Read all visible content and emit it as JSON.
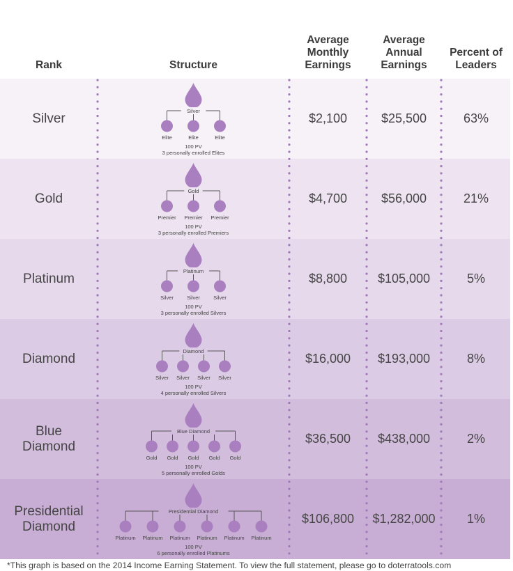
{
  "headers": {
    "rank": "Rank",
    "structure": "Structure",
    "monthly": "Average\nMonthly\nEarnings",
    "annual": "Average\nAnnual\nEarnings",
    "percent": "Percent of\nLeaders"
  },
  "colors": {
    "drop": "#a97fbf",
    "line": "#555555",
    "dots": "#a07ab8",
    "row_bg": [
      "#f7f2f8",
      "#eee4f1",
      "#e6d9ec",
      "#dccbe4",
      "#d3bddd",
      "#c8aed4"
    ]
  },
  "rows": [
    {
      "rank": "Silver",
      "center_label": "Silver",
      "child_label": "Elite",
      "child_count": 3,
      "pv": "100 PV",
      "requirement": "3 personally enrolled Elites",
      "monthly": "$2,100",
      "annual": "$25,500",
      "percent": "63%"
    },
    {
      "rank": "Gold",
      "center_label": "Gold",
      "child_label": "Premier",
      "child_count": 3,
      "pv": "100 PV",
      "requirement": "3 personally enrolled Premiers",
      "monthly": "$4,700",
      "annual": "$56,000",
      "percent": "21%"
    },
    {
      "rank": "Platinum",
      "center_label": "Platinum",
      "child_label": "Silver",
      "child_count": 3,
      "pv": "100 PV",
      "requirement": "3 personally enrolled Silvers",
      "monthly": "$8,800",
      "annual": "$105,000",
      "percent": "5%"
    },
    {
      "rank": "Diamond",
      "center_label": "Diamond",
      "child_label": "Silver",
      "child_count": 4,
      "pv": "100 PV",
      "requirement": "4 personally enrolled Silvers",
      "monthly": "$16,000",
      "annual": "$193,000",
      "percent": "8%"
    },
    {
      "rank": "Blue\nDiamond",
      "center_label": "Blue Diamond",
      "child_label": "Gold",
      "child_count": 5,
      "pv": "100 PV",
      "requirement": "5 personally enrolled Golds",
      "monthly": "$36,500",
      "annual": "$438,000",
      "percent": "2%"
    },
    {
      "rank": "Presidential\nDiamond",
      "center_label": "Presidential Diamond",
      "child_label": "Platinum",
      "child_count": 6,
      "pv": "100 PV",
      "requirement": "6 personally enrolled Platinums",
      "monthly": "$106,800",
      "annual": "$1,282,000",
      "percent": "1%"
    }
  ],
  "chart_data": {
    "type": "table",
    "title": "",
    "columns": [
      "Rank",
      "Structure",
      "Average Monthly Earnings",
      "Average Annual Earnings",
      "Percent of Leaders"
    ],
    "ranks": [
      "Silver",
      "Gold",
      "Platinum",
      "Diamond",
      "Blue Diamond",
      "Presidential Diamond"
    ],
    "average_monthly_earnings_usd": [
      2100,
      4700,
      8800,
      16000,
      36500,
      106800
    ],
    "average_annual_earnings_usd": [
      25500,
      56000,
      105000,
      193000,
      438000,
      1282000
    ],
    "percent_of_leaders": [
      63,
      21,
      5,
      8,
      2,
      1
    ]
  },
  "footer": "*This graph is based on the 2014 Income Earning Statement. To view the full statement, please go to doterratools.com"
}
